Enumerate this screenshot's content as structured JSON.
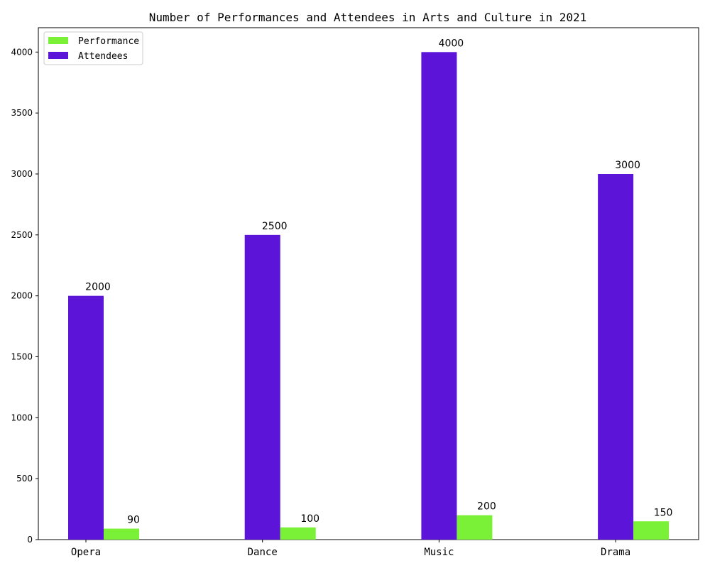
{
  "chart_data": {
    "type": "bar",
    "title": "Number of Performances and Attendees in Arts and Culture in 2021",
    "xlabel": "",
    "ylabel": "",
    "categories": [
      "Opera",
      "Dance",
      "Music",
      "Drama"
    ],
    "series": [
      {
        "name": "Attendees",
        "values": [
          2000,
          2500,
          4000,
          3000
        ],
        "color": "#5b14d8"
      },
      {
        "name": "Performance",
        "values": [
          90,
          100,
          200,
          150
        ],
        "color": "#7af037"
      }
    ],
    "ylim": [
      0,
      4200
    ],
    "yticks": [
      0,
      500,
      1000,
      1500,
      2000,
      2500,
      3000,
      3500,
      4000
    ],
    "legend_entries": [
      "Performance",
      "Attendees"
    ],
    "legend_placement": "top-left",
    "grid": false
  }
}
